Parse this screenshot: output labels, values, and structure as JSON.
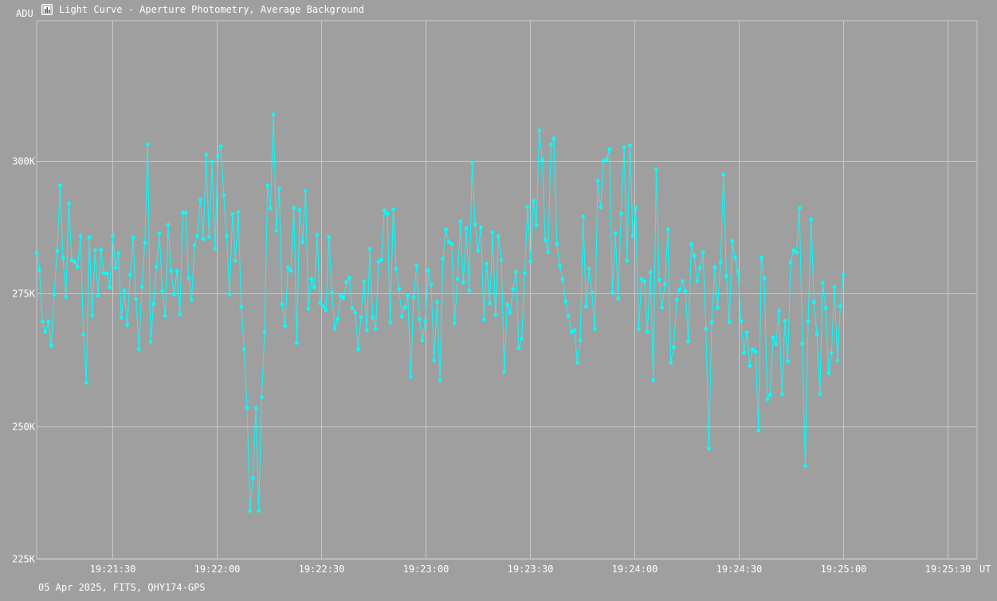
{
  "window": {
    "title": "Light Curve - Aperture Photometry, Average Background",
    "icon": "chart-icon"
  },
  "footer": {
    "text": "05 Apr 2025, FITS, QHY174-GPS"
  },
  "colors": {
    "background": "#9f9f9f",
    "grid": "#c8c8c8",
    "series": "#00ffff",
    "text": "#ffffff"
  },
  "chart_data": {
    "type": "line",
    "title": "Light Curve - Aperture Photometry, Average Background",
    "ylabel": "ADU",
    "xlabel": "UT",
    "ylim": [
      225000,
      326500
    ],
    "xlim": [
      "19:21:08.2",
      "19:25:38.5"
    ],
    "yticks": [
      {
        "value": 225000,
        "label": "225K"
      },
      {
        "value": 250000,
        "label": "250K"
      },
      {
        "value": 275000,
        "label": "275K"
      },
      {
        "value": 300000,
        "label": "300K"
      }
    ],
    "xticks": [
      "19:21:30",
      "19:22:00",
      "19:22:30",
      "19:23:00",
      "19:23:30",
      "19:24:00",
      "19:24:30",
      "19:25:00",
      "19:25:30"
    ],
    "grid": true,
    "legend": "none",
    "marker": "circle",
    "series": [
      {
        "x_start": "19:21:08.2",
        "x_step_seconds": 0.84,
        "values": [
          282700,
          279500,
          269700,
          267800,
          269800,
          265200,
          274900,
          283000,
          295400,
          281800,
          274400,
          292000,
          281300,
          281000,
          280000,
          285900,
          267300,
          258200,
          285600,
          270900,
          283200,
          274600,
          283300,
          278900,
          278800,
          276200,
          285900,
          279900,
          282600,
          270500,
          275600,
          269100,
          278500,
          285600,
          274000,
          264500,
          276300,
          284600,
          303200,
          265900,
          273100,
          280100,
          286400,
          275500,
          270800,
          288000,
          279300,
          274900,
          279300,
          271100,
          290300,
          290300,
          278000,
          273900,
          284200,
          285900,
          292700,
          285300,
          301200,
          285700,
          299900,
          283500,
          300900,
          302800,
          293600,
          285900,
          274900,
          290000,
          281200,
          290400,
          272500,
          264600,
          253500,
          234000,
          240200,
          253400,
          234000,
          255500,
          267800,
          295400,
          291100,
          308800,
          286900,
          294800,
          273000,
          268900,
          280000,
          279300,
          291200,
          265700,
          290800,
          284800,
          294400,
          272200,
          277800,
          276200,
          286100,
          273200,
          272600,
          271900,
          285700,
          275200,
          268400,
          270200,
          274600,
          274200,
          277200,
          278000,
          272300,
          271400,
          264500,
          270600,
          277300,
          268100,
          283500,
          270500,
          268400,
          281000,
          281400,
          290700,
          290100,
          269600,
          290900,
          279700,
          275900,
          270700,
          272400,
          274700,
          259300,
          274400,
          280300,
          270200,
          266200,
          269900,
          279400,
          276700,
          262400,
          273400,
          258700,
          281600,
          287100,
          284800,
          284400,
          269400,
          277800,
          288700,
          277100,
          287400,
          275600,
          299700,
          288100,
          283100,
          287500,
          270100,
          280600,
          273200,
          286600,
          271000,
          285900,
          281300,
          260300,
          273000,
          271400,
          275900,
          279100,
          264700,
          266500,
          278900,
          291400,
          281100,
          292500,
          287900,
          305800,
          300300,
          285100,
          282800,
          303200,
          304300,
          284400,
          280300,
          277700,
          273600,
          270800,
          267800,
          268100,
          262000,
          266200,
          289600,
          272600,
          279700,
          275200,
          268300,
          296300,
          291300,
          300100,
          300300,
          302200,
          275200,
          286400,
          274100,
          290100,
          302600,
          281200,
          303000,
          285900,
          291200,
          268300,
          277800,
          277300,
          267900,
          279100,
          258700,
          298500,
          277600,
          272400,
          276800,
          287200,
          262000,
          264900,
          273900,
          275800,
          277400,
          275500,
          266000,
          284400,
          282200,
          277400,
          279900,
          282800,
          268400,
          245800,
          269600,
          280000,
          272300,
          280900,
          297500,
          278400,
          269700,
          285000,
          281800,
          279200,
          269900,
          263900,
          267700,
          261400,
          264500,
          264100,
          249200,
          281800,
          277900,
          255100,
          255900,
          266800,
          265500,
          271800,
          256000,
          269900,
          262200,
          280900,
          283200,
          282800,
          291200,
          265600,
          242500,
          269800,
          289000,
          273400,
          267300,
          256000,
          277100,
          272300,
          260000,
          263900,
          276300,
          262400,
          272600,
          278600
        ]
      }
    ]
  }
}
